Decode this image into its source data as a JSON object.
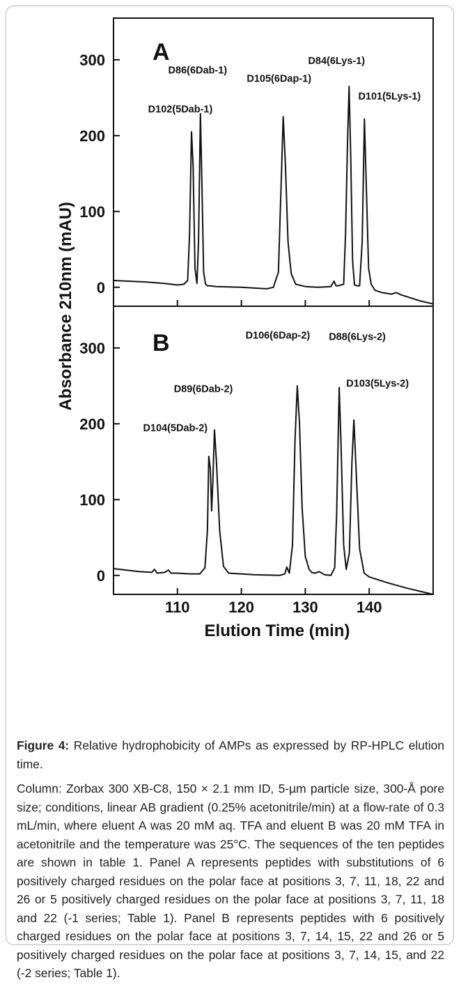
{
  "chart_data": [
    {
      "type": "line",
      "panel": "A",
      "ylabel": "Absorbance 210nm (mAU)",
      "xlabel": "Elution Time (min)",
      "xlim": [
        100,
        150
      ],
      "ylim": [
        -25,
        355
      ],
      "y_ticks": [
        "0",
        "100",
        "200",
        "300"
      ],
      "y_tick_values": [
        0,
        100,
        200,
        300
      ],
      "x_ticks": [
        "110",
        "120",
        "130",
        "140"
      ],
      "x_tick_values": [
        110,
        120,
        130,
        140
      ],
      "series": [
        {
          "x": [
            100,
            105,
            108,
            110,
            111,
            111.6,
            111.9,
            112.2,
            112.45,
            112.75,
            113.05,
            113.3,
            113.6,
            113.85,
            114.1,
            114.4,
            114.7,
            115.1,
            116,
            120,
            124,
            125,
            125.8,
            126.2,
            126.55,
            126.9,
            127.3,
            127.8,
            128.5,
            130,
            132,
            134,
            134.5,
            134.8,
            135.1,
            136,
            136.3,
            136.6,
            136.85,
            137.1,
            137.4,
            137.7,
            138.1,
            138.5,
            138.9,
            139.25,
            139.55,
            139.9,
            140.3,
            140.9,
            142,
            143.5,
            144.2,
            145,
            148,
            150
          ],
          "y": [
            9,
            7,
            5,
            3,
            4,
            9,
            70,
            205,
            160,
            25,
            5,
            60,
            229,
            130,
            20,
            4,
            2,
            2,
            1,
            0,
            -2,
            0,
            20,
            130,
            225,
            160,
            60,
            18,
            4,
            1,
            0,
            1,
            8,
            2,
            2,
            4,
            70,
            190,
            265,
            175,
            35,
            3,
            2,
            2,
            60,
            222,
            130,
            25,
            4,
            -4,
            -7,
            -9,
            -7,
            -10,
            -18,
            -22
          ]
        }
      ],
      "annotations": [
        {
          "text": "D102(5Dab-1)",
          "x": 112.2,
          "y": 205
        },
        {
          "text": "D86(6Dab-1)",
          "x": 113.6,
          "y": 229
        },
        {
          "text": "D105(6Dap-1)",
          "x": 126.55,
          "y": 225
        },
        {
          "text": "D84(6Lys-1)",
          "x": 136.85,
          "y": 265
        },
        {
          "text": "D101(5Lys-1)",
          "x": 139.25,
          "y": 222
        }
      ]
    },
    {
      "type": "line",
      "panel": "B",
      "ylabel": "Absorbance 210nm (mAU)",
      "xlabel": "Elution Time (min)",
      "xlim": [
        100,
        150
      ],
      "ylim": [
        -25,
        355
      ],
      "y_ticks": [
        "0",
        "100",
        "200",
        "300"
      ],
      "y_tick_values": [
        0,
        100,
        200,
        300
      ],
      "x_ticks": [
        "110",
        "120",
        "130",
        "140"
      ],
      "x_tick_values": [
        110,
        120,
        130,
        140
      ],
      "series": [
        {
          "x": [
            100,
            104,
            106,
            106.4,
            106.8,
            108,
            108.6,
            109,
            110,
            112,
            113.5,
            114.3,
            114.7,
            114.9,
            115.15,
            115.35,
            115.55,
            115.8,
            116.1,
            116.6,
            117.2,
            118,
            122,
            126,
            126.8,
            127.1,
            127.5,
            128,
            128.4,
            128.75,
            129.1,
            129.5,
            130,
            130.6,
            131,
            131.5,
            132.2,
            133,
            134,
            134.6,
            134.9,
            135.3,
            135.6,
            136,
            136.4,
            136.9,
            137.3,
            137.6,
            138,
            138.5,
            139.2,
            140,
            143,
            146,
            150
          ],
          "y": [
            9,
            5,
            4,
            8,
            3,
            4,
            7,
            3,
            3,
            2,
            2,
            10,
            60,
            157,
            140,
            85,
            125,
            192,
            150,
            60,
            12,
            3,
            1,
            0,
            2,
            11,
            3,
            40,
            180,
            250,
            200,
            90,
            25,
            8,
            4,
            3,
            5,
            1,
            0,
            10,
            80,
            248,
            170,
            40,
            8,
            30,
            150,
            205,
            130,
            35,
            3,
            -2,
            -10,
            -17,
            -25
          ]
        }
      ],
      "annotations": [
        {
          "text": "D104(5Dab-2)",
          "x": 114.9,
          "y": 157
        },
        {
          "text": "D89(6Dab-2)",
          "x": 115.8,
          "y": 192
        },
        {
          "text": "D106(6Dap-2)",
          "x": 128.75,
          "y": 250
        },
        {
          "text": "D88(6Lys-2)",
          "x": 135.3,
          "y": 248
        },
        {
          "text": "D103(5Lys-2)",
          "x": 137.6,
          "y": 205
        }
      ]
    }
  ],
  "caption": {
    "label": "Figure 4:",
    "title": " Relative hydrophobicity of AMPs as expressed by RP-HPLC elution time.",
    "body": "Column: Zorbax 300 XB-C8, 150 × 2.1 mm ID, 5-µm particle size, 300-Å pore size; conditions, linear AB gradient (0.25% acetonitrile/min) at a flow-rate of 0.3 mL/min, where eluent A was 20 mM aq. TFA and eluent B was 20 mM TFA in acetonitrile and the temperature was 25°C. The sequences of the ten peptides are shown in table 1. Panel A represents peptides with substitutions of 6 positively charged residues on the polar face at positions 3, 7, 11, 18, 22 and 26 or 5 positively charged residues on the polar face at positions 3, 7, 11, 18 and 22 (-1 series; Table 1). Panel B represents peptides with 6 positively charged residues on the polar face at positions 3, 7, 14, 15, 22 and 26 or 5 positively charged residues on the polar face at positions 3, 7, 14, 15, and 22 (-2 series; Table 1)."
  }
}
